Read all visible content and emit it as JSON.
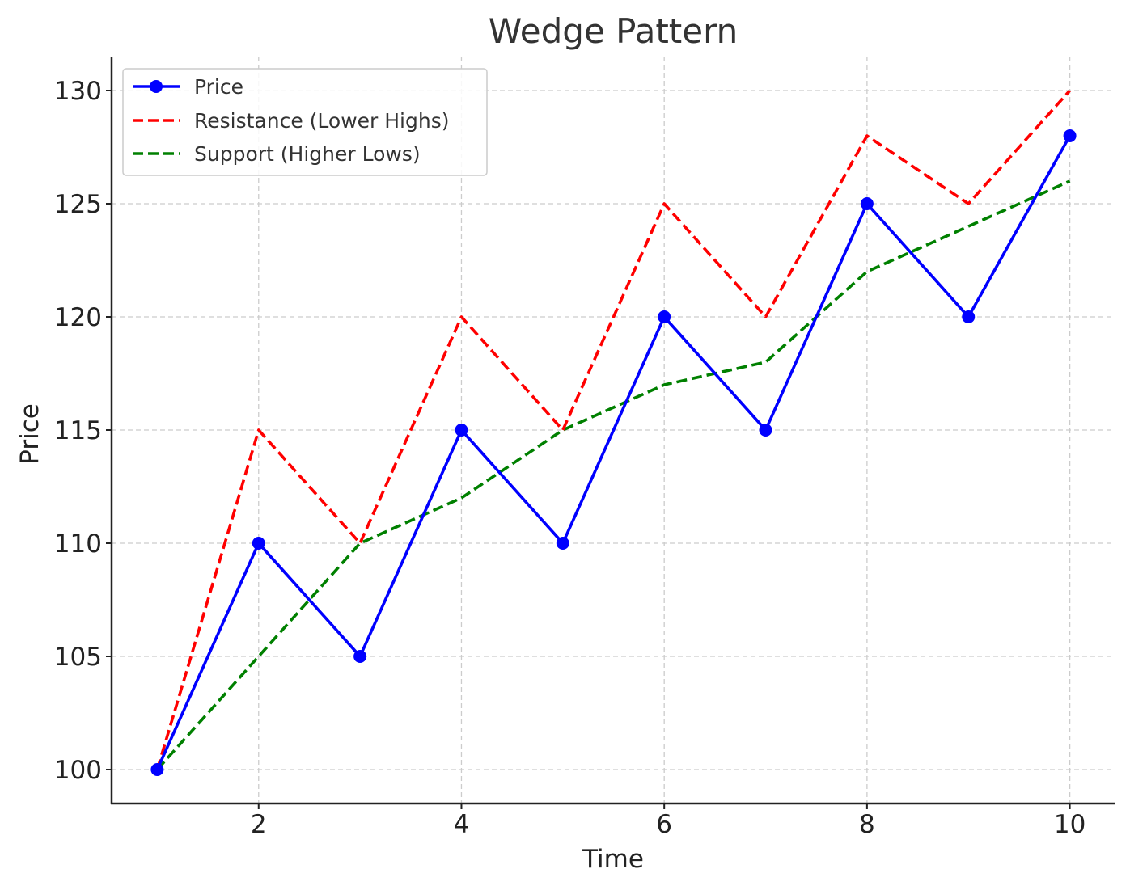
{
  "chart_data": {
    "type": "line",
    "title": "Wedge Pattern",
    "xlabel": "Time",
    "ylabel": "Price",
    "x": [
      1,
      2,
      3,
      4,
      5,
      6,
      7,
      8,
      9,
      10
    ],
    "xlim": [
      0.55,
      10.45
    ],
    "ylim": [
      98.5,
      131.5
    ],
    "xticks": [
      2,
      4,
      6,
      8,
      10
    ],
    "yticks": [
      100,
      105,
      110,
      115,
      120,
      125,
      130
    ],
    "grid": true,
    "legend_position": "top-left",
    "series": [
      {
        "name": "Price",
        "values": [
          100,
          110,
          105,
          115,
          110,
          120,
          115,
          125,
          120,
          128
        ],
        "color": "#0000ff",
        "style": "solid",
        "markers": true
      },
      {
        "name": "Resistance (Lower Highs)",
        "values": [
          100,
          115,
          110,
          120,
          115,
          125,
          120,
          128,
          125,
          130
        ],
        "color": "#ff0000",
        "style": "dashed",
        "markers": false
      },
      {
        "name": "Support (Higher Lows)",
        "values": [
          100,
          105,
          110,
          112,
          115,
          117,
          118,
          122,
          124,
          126
        ],
        "color": "#008000",
        "style": "dashed",
        "markers": false
      }
    ]
  }
}
